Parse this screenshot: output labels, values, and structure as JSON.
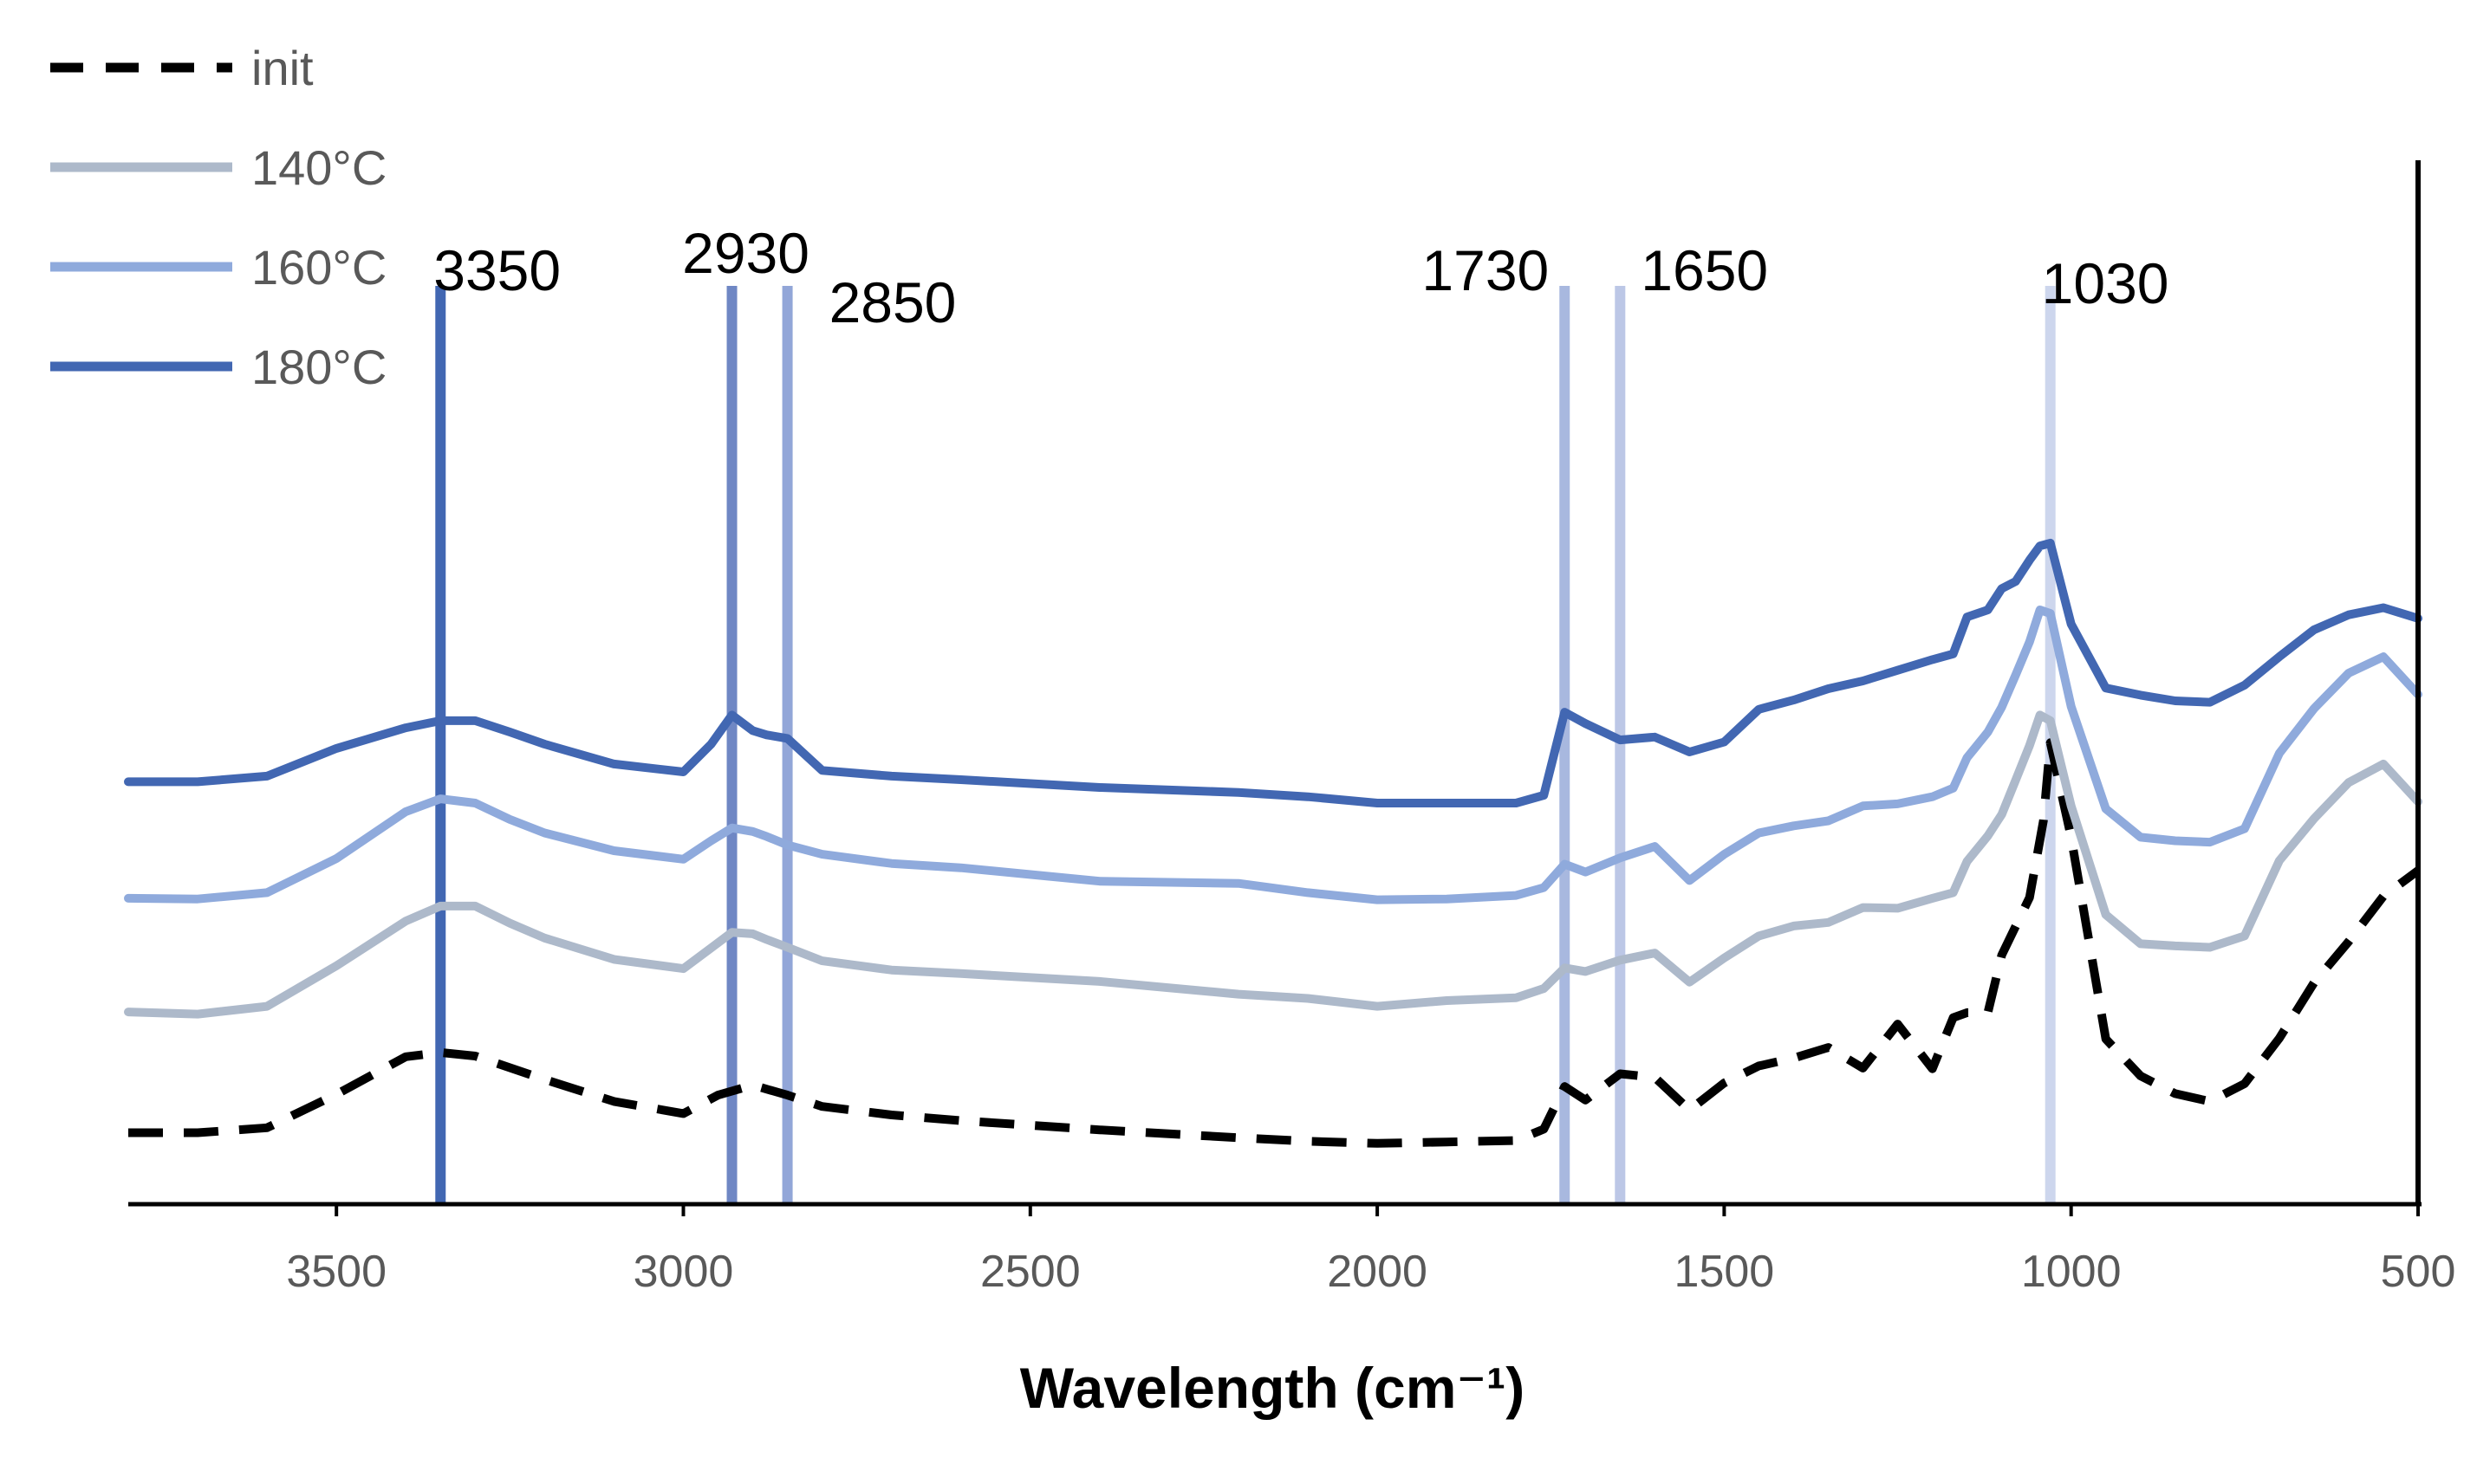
{
  "chart_data": {
    "type": "line",
    "title": "",
    "xlabel": "Wavelength (cm⁻¹)",
    "ylabel": "",
    "xlim": [
      3800,
      500
    ],
    "x_reversed": true,
    "ylim": [
      0,
      1
    ],
    "y_ticks_shown": false,
    "x_ticks": [
      {
        "value": 3500,
        "label": "3500"
      },
      {
        "value": 3000,
        "label": "3000"
      },
      {
        "value": 2500,
        "label": "2500"
      },
      {
        "value": 2000,
        "label": "2000"
      },
      {
        "value": 1500,
        "label": "1500"
      },
      {
        "value": 1000,
        "label": "1000"
      },
      {
        "value": 500,
        "label": "500"
      }
    ],
    "legend_position": "top-left",
    "series": [
      {
        "name": "init",
        "color": "#000000",
        "style": "dashed",
        "x": [
          3800,
          3700,
          3600,
          3500,
          3400,
          3350,
          3300,
          3200,
          3100,
          3000,
          2950,
          2900,
          2850,
          2800,
          2700,
          2600,
          2400,
          2200,
          2100,
          2000,
          1900,
          1800,
          1760,
          1730,
          1700,
          1650,
          1600,
          1550,
          1500,
          1450,
          1400,
          1350,
          1300,
          1250,
          1200,
          1170,
          1150,
          1120,
          1100,
          1060,
          1040,
          1030,
          1000,
          950,
          900,
          850,
          800,
          750,
          700,
          650,
          600,
          550,
          500
        ],
        "values": [
          0.064,
          0.064,
          0.071,
          0.118,
          0.171,
          0.177,
          0.172,
          0.139,
          0.108,
          0.091,
          0.117,
          0.131,
          0.117,
          0.101,
          0.089,
          0.081,
          0.068,
          0.057,
          0.052,
          0.049,
          0.051,
          0.053,
          0.069,
          0.129,
          0.11,
          0.147,
          0.142,
          0.096,
          0.134,
          0.158,
          0.169,
          0.184,
          0.155,
          0.217,
          0.154,
          0.226,
          0.233,
          0.233,
          0.314,
          0.395,
          0.503,
          0.613,
          0.48,
          0.196,
          0.144,
          0.119,
          0.108,
          0.133,
          0.197,
          0.275,
          0.333,
          0.397,
          0.433
        ]
      },
      {
        "name": "140°C",
        "color": "#adb9ca",
        "style": "solid",
        "x": [
          3800,
          3700,
          3600,
          3500,
          3400,
          3350,
          3300,
          3250,
          3200,
          3100,
          3000,
          2960,
          2930,
          2900,
          2880,
          2850,
          2800,
          2700,
          2600,
          2400,
          2200,
          2100,
          2000,
          1900,
          1800,
          1760,
          1730,
          1700,
          1650,
          1600,
          1550,
          1500,
          1450,
          1400,
          1350,
          1300,
          1250,
          1200,
          1170,
          1150,
          1120,
          1100,
          1080,
          1060,
          1045,
          1030,
          1000,
          950,
          900,
          850,
          800,
          750,
          700,
          650,
          600,
          550,
          500
        ],
        "values": [
          0.234,
          0.231,
          0.242,
          0.299,
          0.362,
          0.383,
          0.383,
          0.359,
          0.338,
          0.308,
          0.295,
          0.324,
          0.346,
          0.344,
          0.336,
          0.325,
          0.306,
          0.293,
          0.288,
          0.277,
          0.259,
          0.253,
          0.242,
          0.25,
          0.254,
          0.267,
          0.296,
          0.291,
          0.307,
          0.317,
          0.276,
          0.31,
          0.341,
          0.355,
          0.36,
          0.381,
          0.38,
          0.394,
          0.402,
          0.446,
          0.482,
          0.512,
          0.56,
          0.609,
          0.652,
          0.644,
          0.524,
          0.371,
          0.33,
          0.327,
          0.325,
          0.341,
          0.447,
          0.506,
          0.557,
          0.583,
          0.53
        ]
      },
      {
        "name": "160°C",
        "color": "#8faadc",
        "style": "solid",
        "x": [
          3800,
          3700,
          3600,
          3500,
          3400,
          3350,
          3300,
          3250,
          3200,
          3100,
          3000,
          2960,
          2930,
          2900,
          2880,
          2850,
          2800,
          2700,
          2600,
          2400,
          2200,
          2100,
          2000,
          1900,
          1800,
          1760,
          1730,
          1700,
          1650,
          1600,
          1550,
          1500,
          1450,
          1400,
          1350,
          1300,
          1250,
          1200,
          1170,
          1150,
          1120,
          1100,
          1080,
          1060,
          1045,
          1030,
          1000,
          950,
          900,
          850,
          800,
          750,
          700,
          650,
          600,
          550,
          500
        ],
        "values": [
          0.394,
          0.393,
          0.402,
          0.45,
          0.516,
          0.534,
          0.528,
          0.505,
          0.486,
          0.461,
          0.449,
          0.475,
          0.493,
          0.488,
          0.481,
          0.469,
          0.456,
          0.443,
          0.437,
          0.418,
          0.415,
          0.402,
          0.392,
          0.393,
          0.398,
          0.409,
          0.442,
          0.431,
          0.451,
          0.467,
          0.419,
          0.456,
          0.486,
          0.496,
          0.503,
          0.524,
          0.527,
          0.537,
          0.549,
          0.592,
          0.628,
          0.663,
          0.708,
          0.755,
          0.8,
          0.795,
          0.664,
          0.52,
          0.48,
          0.475,
          0.473,
          0.492,
          0.598,
          0.661,
          0.711,
          0.734,
          0.681
        ]
      },
      {
        "name": "180°C",
        "color": "#4267b2",
        "style": "solid",
        "x": [
          3800,
          3700,
          3600,
          3500,
          3400,
          3350,
          3300,
          3250,
          3200,
          3100,
          3000,
          2960,
          2930,
          2900,
          2880,
          2850,
          2800,
          2700,
          2600,
          2400,
          2200,
          2100,
          2000,
          1900,
          1800,
          1760,
          1730,
          1700,
          1650,
          1600,
          1550,
          1500,
          1450,
          1400,
          1350,
          1300,
          1250,
          1200,
          1170,
          1150,
          1120,
          1100,
          1080,
          1060,
          1045,
          1030,
          1000,
          950,
          900,
          850,
          800,
          750,
          700,
          650,
          600,
          550,
          500
        ],
        "values": [
          0.558,
          0.558,
          0.566,
          0.605,
          0.634,
          0.644,
          0.644,
          0.628,
          0.611,
          0.583,
          0.572,
          0.611,
          0.652,
          0.63,
          0.624,
          0.619,
          0.574,
          0.566,
          0.561,
          0.55,
          0.543,
          0.537,
          0.528,
          0.528,
          0.528,
          0.539,
          0.656,
          0.64,
          0.617,
          0.621,
          0.6,
          0.614,
          0.66,
          0.673,
          0.689,
          0.7,
          0.715,
          0.73,
          0.738,
          0.79,
          0.8,
          0.83,
          0.84,
          0.87,
          0.89,
          0.894,
          0.78,
          0.69,
          0.68,
          0.672,
          0.67,
          0.694,
          0.734,
          0.772,
          0.793,
          0.803,
          0.788
        ]
      }
    ],
    "annotations": [
      {
        "x": 3350,
        "label": "3350",
        "color": "#4267b2"
      },
      {
        "x": 2930,
        "label": "2930",
        "color": "#6f87c4"
      },
      {
        "x": 2850,
        "label": "2850",
        "color": "#92a6d8"
      },
      {
        "x": 1730,
        "label": "1730",
        "color": "#a8b8df"
      },
      {
        "x": 1650,
        "label": "1650",
        "color": "#bcc7e6"
      },
      {
        "x": 1030,
        "label": "1030",
        "color": "#cdd6ed"
      }
    ]
  }
}
